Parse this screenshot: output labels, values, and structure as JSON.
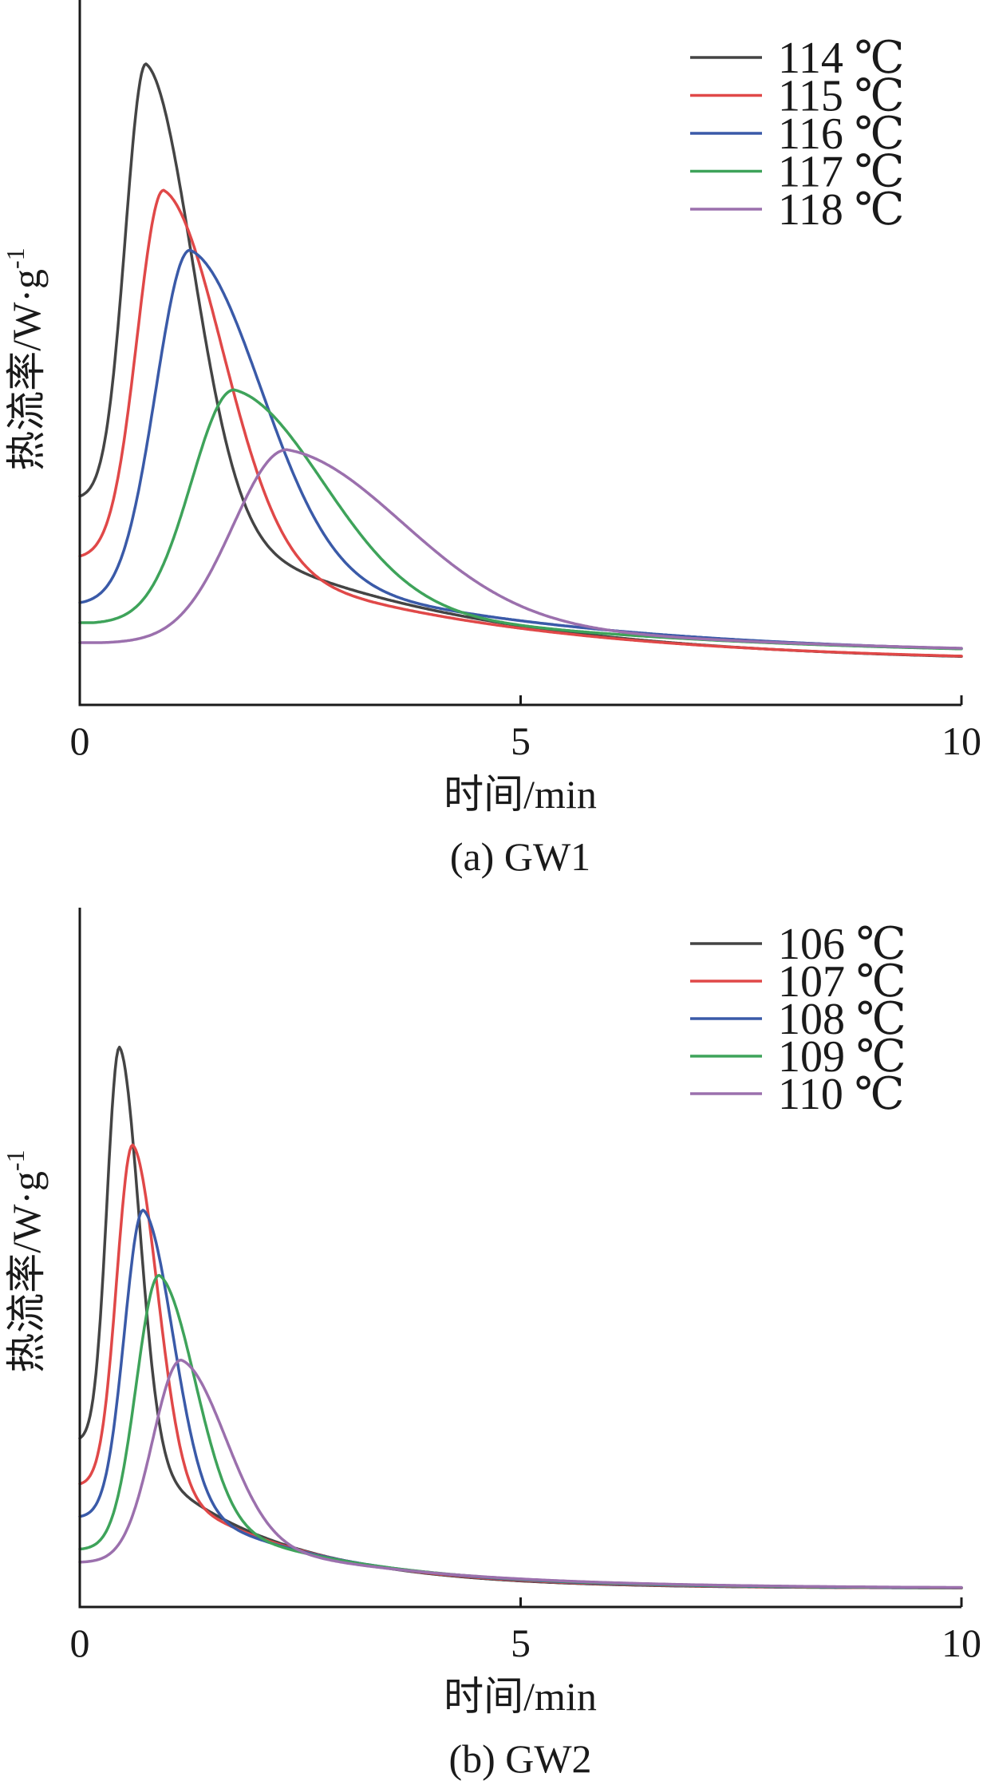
{
  "chart_data": [
    {
      "type": "line",
      "caption": "(a) GW1",
      "xlabel": "时间/min",
      "ylabel": "热流率/W·g",
      "ylabel_superscript": "-1",
      "xlim": [
        0,
        10
      ],
      "xticks": [
        "0",
        "5",
        "10"
      ],
      "yticks": [],
      "grid": false,
      "legend_position": "top-right",
      "series": [
        {
          "name": "114 ℃",
          "color": "#444444",
          "y_start": 0.35,
          "y_final": 0.1,
          "peak_x": 0.75,
          "peak_y": 1.0,
          "rise_x": 0.0,
          "rise_width": 0.36,
          "decay_width": 0.75,
          "tail_scale": 2.8
        },
        {
          "name": "115 ℃",
          "color": "#e04848",
          "y_start": 0.26,
          "y_final": 0.1,
          "peak_x": 0.95,
          "peak_y": 0.81,
          "rise_x": 0.0,
          "rise_width": 0.46,
          "decay_width": 0.95,
          "tail_scale": 3.0
        },
        {
          "name": "116 ℃",
          "color": "#3a5aa8",
          "y_start": 0.19,
          "y_final": 0.11,
          "peak_x": 1.25,
          "peak_y": 0.72,
          "rise_x": 0.0,
          "rise_width": 0.6,
          "decay_width": 1.15,
          "tail_scale": 3.2
        },
        {
          "name": "117 ℃",
          "color": "#3ea35a",
          "y_start": 0.16,
          "y_final": 0.11,
          "peak_x": 1.75,
          "peak_y": 0.51,
          "rise_x": 0.15,
          "rise_width": 0.75,
          "decay_width": 1.45,
          "tail_scale": 3.5
        },
        {
          "name": "118 ℃",
          "color": "#9b70ad",
          "y_start": 0.13,
          "y_final": 0.11,
          "peak_x": 2.35,
          "peak_y": 0.42,
          "rise_x": 0.25,
          "rise_width": 0.95,
          "decay_width": 1.9,
          "tail_scale": 3.8
        }
      ]
    },
    {
      "type": "line",
      "caption": "(b) GW2",
      "xlabel": "时间/min",
      "ylabel": "热流率/W·g",
      "ylabel_superscript": "-1",
      "xlim": [
        0,
        10
      ],
      "xticks": [
        "0",
        "5",
        "10"
      ],
      "yticks": [],
      "grid": false,
      "legend_position": "top-right",
      "series": [
        {
          "name": "106 ℃",
          "color": "#444444",
          "y_start": 0.3,
          "y_final": 0.07,
          "peak_x": 0.45,
          "peak_y": 0.9,
          "rise_x": 0.0,
          "rise_width": 0.22,
          "decay_width": 0.32,
          "tail_scale": 1.5
        },
        {
          "name": "107 ℃",
          "color": "#e04848",
          "y_start": 0.23,
          "y_final": 0.07,
          "peak_x": 0.6,
          "peak_y": 0.75,
          "rise_x": 0.0,
          "rise_width": 0.28,
          "decay_width": 0.4,
          "tail_scale": 1.6
        },
        {
          "name": "108 ℃",
          "color": "#3a5aa8",
          "y_start": 0.18,
          "y_final": 0.07,
          "peak_x": 0.72,
          "peak_y": 0.65,
          "rise_x": 0.0,
          "rise_width": 0.33,
          "decay_width": 0.48,
          "tail_scale": 1.7
        },
        {
          "name": "109 ℃",
          "color": "#3ea35a",
          "y_start": 0.13,
          "y_final": 0.07,
          "peak_x": 0.9,
          "peak_y": 0.55,
          "rise_x": 0.0,
          "rise_width": 0.4,
          "decay_width": 0.58,
          "tail_scale": 1.8
        },
        {
          "name": "110 ℃",
          "color": "#9b70ad",
          "y_start": 0.11,
          "y_final": 0.07,
          "peak_x": 1.15,
          "peak_y": 0.42,
          "rise_x": 0.0,
          "rise_width": 0.5,
          "decay_width": 0.72,
          "tail_scale": 2.0
        }
      ]
    }
  ]
}
